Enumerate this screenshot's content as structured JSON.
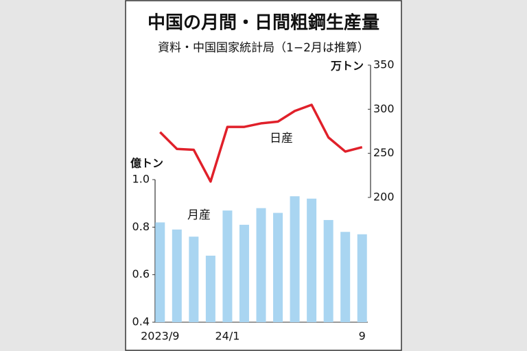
{
  "chart_data": {
    "type": "combo",
    "title": "中国の月間・日間粗鋼生産量",
    "subtitle": "資料・中国国家統計局（1−2月は推算）",
    "y_label": "億トン",
    "y2_label": "万トン",
    "categories": [
      "2023/9",
      null,
      null,
      null,
      "24/1",
      null,
      null,
      null,
      null,
      null,
      null,
      null,
      "9"
    ],
    "series": [
      {
        "name": "月産",
        "type": "bar",
        "color": "#a9d5f1",
        "values": [
          0.82,
          0.79,
          0.76,
          0.68,
          0.87,
          0.81,
          0.88,
          0.86,
          0.93,
          0.92,
          0.83,
          0.78,
          0.77
        ]
      },
      {
        "name": "日産",
        "type": "line",
        "axis": "y2",
        "color": "#e0202a",
        "values": [
          274,
          255,
          254,
          218,
          280,
          280,
          284,
          286,
          298,
          305,
          268,
          252,
          257
        ]
      }
    ],
    "ylim": [
      0.4,
      1.0
    ],
    "yticks": [
      {
        "value": 1,
        "label": "1.0"
      },
      0.8,
      0.6,
      0.4
    ],
    "y2lim": [
      200,
      350
    ],
    "y2ticks": [
      350,
      300,
      250,
      200
    ],
    "grid": false
  }
}
